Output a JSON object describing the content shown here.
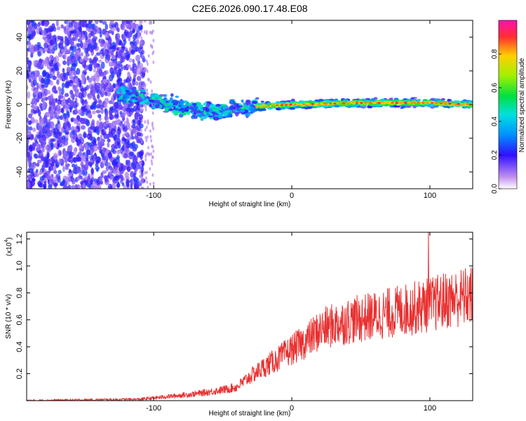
{
  "title": "C2E6.2026.090.17.48.E08",
  "chart_data": [
    {
      "type": "heatmap",
      "xlabel": "Height of straight line (km)",
      "ylabel": "Frequency (Hz)",
      "xlim": [
        -192,
        131
      ],
      "ylim": [
        -50,
        50
      ],
      "xticks": [
        -100,
        0,
        100
      ],
      "yticks": [
        -40,
        -20,
        0,
        20,
        40
      ],
      "colorbar": {
        "label": "Normalized spectral amplitude",
        "range": [
          0,
          1
        ],
        "ticks": [
          "0.0",
          "0.2",
          "0.4",
          "0.6",
          "0.8"
        ]
      },
      "regions": [
        {
          "name": "broadband noise",
          "x": [
            -192,
            -107
          ],
          "y": [
            -50,
            50
          ],
          "amplitude": 0.2
        },
        {
          "name": "scattered onset",
          "x": [
            -125,
            -25
          ],
          "y": [
            -15,
            10
          ],
          "amplitude": 0.4
        },
        {
          "name": "signal band",
          "x": [
            -25,
            131
          ],
          "y": [
            -3,
            3
          ],
          "amplitude": 0.8
        }
      ],
      "signal_center_hz": [
        [
          -120,
          6
        ],
        [
          -100,
          3
        ],
        [
          -80,
          -2
        ],
        [
          -60,
          -4
        ],
        [
          -40,
          -3
        ],
        [
          -25,
          -1
        ],
        [
          0,
          0
        ],
        [
          50,
          1
        ],
        [
          100,
          1
        ],
        [
          131,
          0
        ]
      ]
    },
    {
      "type": "line",
      "xlabel": "Height of straight line (km)",
      "ylabel": "SNR (10 * v/v)",
      "yscale_label": "(x10",
      "yscale_exp": "4",
      "xlim": [
        -192,
        131
      ],
      "ylim": [
        0,
        1.25
      ],
      "xticks": [
        -100,
        0,
        100
      ],
      "yticks": [
        "0.2",
        "0.4",
        "0.6",
        "0.8",
        "1.0",
        "1.2"
      ],
      "line_color": "#e83030",
      "trend": [
        [
          -192,
          0.0
        ],
        [
          -110,
          0.01
        ],
        [
          -90,
          0.03
        ],
        [
          -70,
          0.05
        ],
        [
          -50,
          0.08
        ],
        [
          -40,
          0.1
        ],
        [
          -30,
          0.18
        ],
        [
          -20,
          0.25
        ],
        [
          -10,
          0.31
        ],
        [
          0,
          0.38
        ],
        [
          10,
          0.44
        ],
        [
          20,
          0.52
        ],
        [
          30,
          0.56
        ],
        [
          40,
          0.59
        ],
        [
          50,
          0.61
        ],
        [
          60,
          0.63
        ],
        [
          70,
          0.65
        ],
        [
          80,
          0.67
        ],
        [
          90,
          0.69
        ],
        [
          100,
          0.71
        ],
        [
          110,
          0.74
        ],
        [
          120,
          0.76
        ],
        [
          131,
          0.78
        ]
      ],
      "peak": {
        "x": 99,
        "y": 1.25
      }
    }
  ]
}
